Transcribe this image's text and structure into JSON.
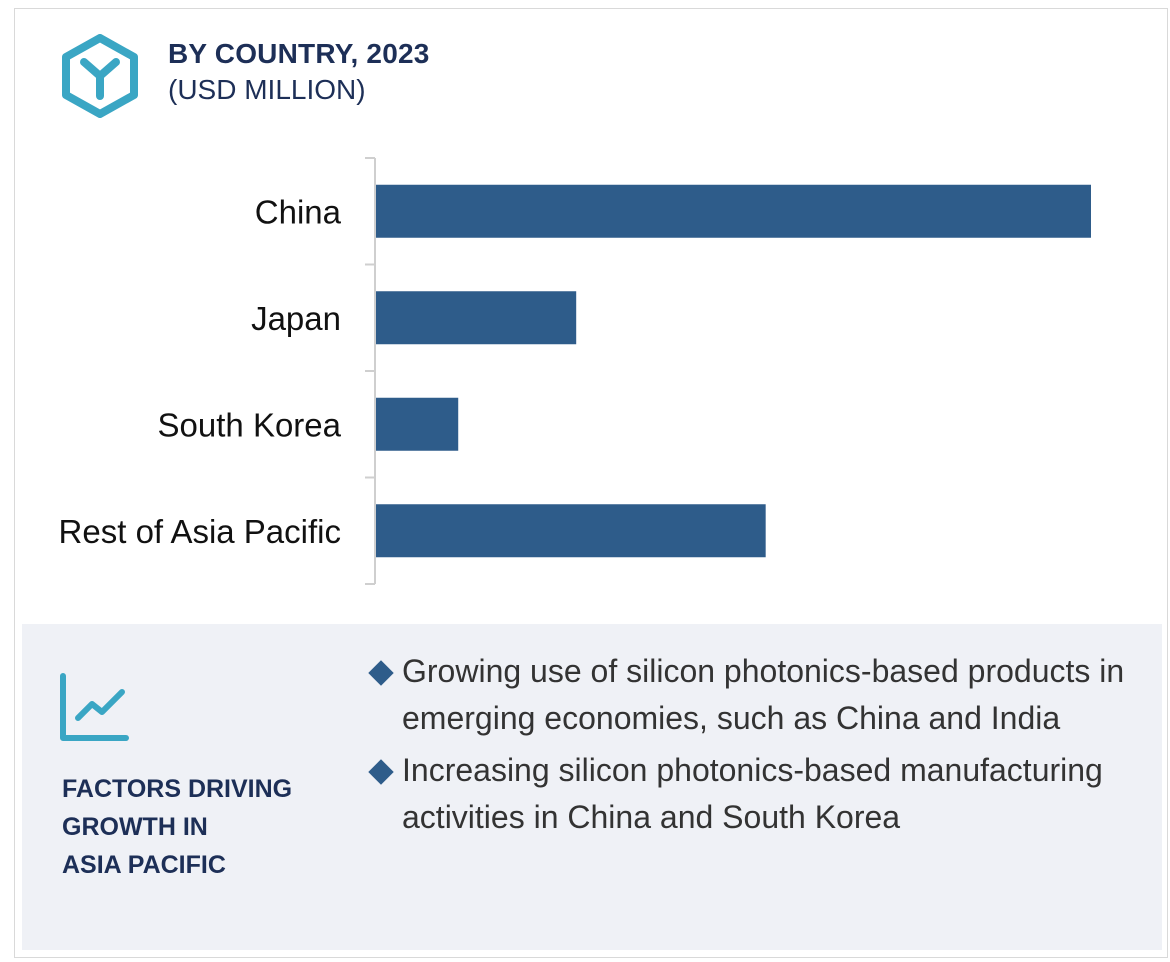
{
  "header": {
    "title": "BY COUNTRY, 2023",
    "subtitle": "(USD MILLION)"
  },
  "colors": {
    "bar": "#2e5c8a",
    "icon_teal": "#3aa6c4",
    "heading_navy": "#1d2f57",
    "panel_bg": "#eff1f6"
  },
  "icons": {
    "logo": "hexagon-y-logo-icon",
    "factors": "trend-chart-icon",
    "bullet": "diamond-bullet-icon"
  },
  "chart_data": {
    "type": "bar",
    "orientation": "horizontal",
    "categories": [
      "China",
      "Japan",
      "South Korea",
      "Rest of Asia Pacific"
    ],
    "values": [
      100,
      28,
      11.5,
      54.5
    ],
    "value_axis_shown": false,
    "grid": false,
    "legend": "none"
  },
  "factors": {
    "heading_lines": [
      "FACTORS DRIVING",
      "GROWTH IN",
      "ASIA PACIFIC"
    ],
    "bullets": [
      "Growing use of silicon photonics-based products in emerging economies, such as China and India",
      "Increasing silicon photonics-based manufacturing activities in China and South Korea"
    ]
  }
}
